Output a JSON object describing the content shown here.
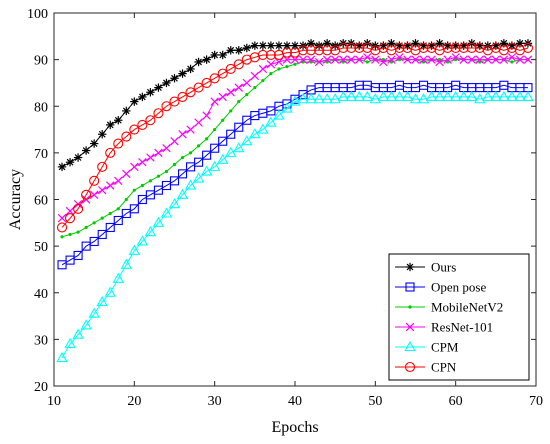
{
  "chart_data": {
    "type": "line",
    "title": "",
    "xlabel": "Epochs",
    "ylabel": "Accuracy",
    "xlim": [
      10,
      70
    ],
    "ylim": [
      20,
      100
    ],
    "xticks": [
      10,
      20,
      30,
      40,
      50,
      60,
      70
    ],
    "yticks": [
      20,
      30,
      40,
      50,
      60,
      70,
      80,
      90,
      100
    ],
    "grid": false,
    "legend_position": "bottom-right",
    "x": [
      11,
      12,
      13,
      14,
      15,
      16,
      17,
      18,
      19,
      20,
      21,
      22,
      23,
      24,
      25,
      26,
      27,
      28,
      29,
      30,
      31,
      32,
      33,
      34,
      35,
      36,
      37,
      38,
      39,
      40,
      41,
      42,
      43,
      44,
      45,
      46,
      47,
      48,
      49,
      50,
      51,
      52,
      53,
      54,
      55,
      56,
      57,
      58,
      59,
      60,
      61,
      62,
      63,
      64,
      65,
      66,
      67,
      68,
      69
    ],
    "series": [
      {
        "name": "Ours",
        "color": "#000000",
        "marker": "asterisk",
        "values": [
          67,
          68,
          69,
          70.5,
          72,
          74,
          76,
          77,
          79,
          81,
          82,
          83,
          84,
          85,
          86,
          87,
          88,
          89.5,
          90,
          91,
          91,
          92,
          92,
          92.5,
          93,
          93,
          93,
          93,
          93,
          93,
          93,
          93.5,
          93,
          93.5,
          93,
          93.5,
          93.5,
          93,
          93.5,
          93,
          93,
          93.5,
          93,
          93,
          93.5,
          93,
          93,
          93.5,
          93,
          93,
          93,
          93.5,
          93,
          93,
          93,
          93.5,
          93,
          93.5,
          93.5
        ]
      },
      {
        "name": "Open pose",
        "color": "#0000ff",
        "marker": "square",
        "values": [
          46,
          47,
          48,
          50,
          51,
          52.5,
          54,
          55.5,
          57,
          58,
          60,
          61,
          62,
          63,
          64,
          65.5,
          67,
          68,
          69.5,
          71,
          72.5,
          74,
          75.5,
          77,
          78,
          78.5,
          79,
          80,
          80.5,
          81.5,
          82.5,
          83.5,
          84,
          84,
          84,
          84,
          84,
          84.5,
          84.5,
          84,
          84,
          84,
          84.5,
          84,
          84,
          84.5,
          84,
          84,
          84,
          84.5,
          84,
          84,
          84,
          84,
          84,
          84.5,
          84,
          84,
          84
        ]
      },
      {
        "name": "MobileNetV2",
        "color": "#00cc00",
        "marker": "dot",
        "values": [
          52,
          52.5,
          53,
          54,
          55,
          56,
          57,
          58,
          60,
          62,
          63,
          64,
          65,
          66,
          67.5,
          69,
          70,
          71.5,
          73,
          75,
          77,
          79,
          81,
          82.5,
          84,
          85.5,
          87,
          88,
          88.5,
          89,
          89.5,
          89.5,
          89.5,
          89.5,
          90,
          89.5,
          90,
          90,
          89.5,
          90,
          90,
          89.5,
          90,
          90,
          90,
          89.5,
          90,
          90,
          89.5,
          90,
          90,
          90,
          89.5,
          90,
          90,
          90,
          89.5,
          90,
          90
        ]
      },
      {
        "name": "ResNet-101",
        "color": "#ff00ff",
        "marker": "x",
        "values": [
          56,
          57.5,
          59,
          60,
          61,
          62,
          63,
          64,
          65.5,
          67,
          68,
          69,
          70,
          71,
          72.5,
          74,
          75,
          76.5,
          78,
          81,
          82,
          83,
          84,
          85,
          86.5,
          88,
          89,
          89.5,
          90,
          90,
          90,
          90,
          89.5,
          90,
          90,
          90,
          90,
          90,
          90.5,
          90,
          89.5,
          90,
          90.5,
          90,
          90,
          90,
          90,
          89.5,
          90,
          90.5,
          90,
          90,
          90,
          90,
          90,
          90,
          90.5,
          90,
          90
        ]
      },
      {
        "name": "CPM",
        "color": "#00ffff",
        "marker": "triangle",
        "values": [
          26,
          29,
          31,
          33,
          35.5,
          38,
          40,
          43,
          46,
          49,
          51,
          53,
          55,
          57,
          59,
          61,
          63,
          64.5,
          66,
          67,
          68.5,
          70,
          71,
          72.5,
          74,
          75,
          76.5,
          78,
          79.5,
          81,
          81.5,
          81.5,
          81.5,
          81.5,
          81.5,
          82,
          82,
          82,
          82,
          81.5,
          82,
          82,
          82,
          82,
          81.5,
          81.5,
          82,
          82,
          82,
          82,
          82,
          82,
          81.5,
          82,
          82,
          82,
          82,
          82,
          82
        ]
      },
      {
        "name": "CPN",
        "color": "#ff0000",
        "marker": "circle",
        "values": [
          54,
          56,
          58,
          61,
          64,
          67,
          70,
          72,
          73.5,
          75,
          76,
          77,
          78.5,
          80,
          81,
          82,
          83,
          84,
          85,
          86,
          87,
          88,
          89,
          90,
          90.5,
          91,
          91,
          91,
          91.5,
          91.5,
          92,
          92,
          92,
          92,
          92,
          92.5,
          92.5,
          92.5,
          92.5,
          92,
          92.5,
          92,
          92.5,
          92.5,
          92,
          92.5,
          92.5,
          92,
          92.5,
          92.5,
          92.5,
          92.5,
          92.5,
          92,
          92.5,
          92,
          92.5,
          92,
          92.5
        ]
      }
    ]
  }
}
